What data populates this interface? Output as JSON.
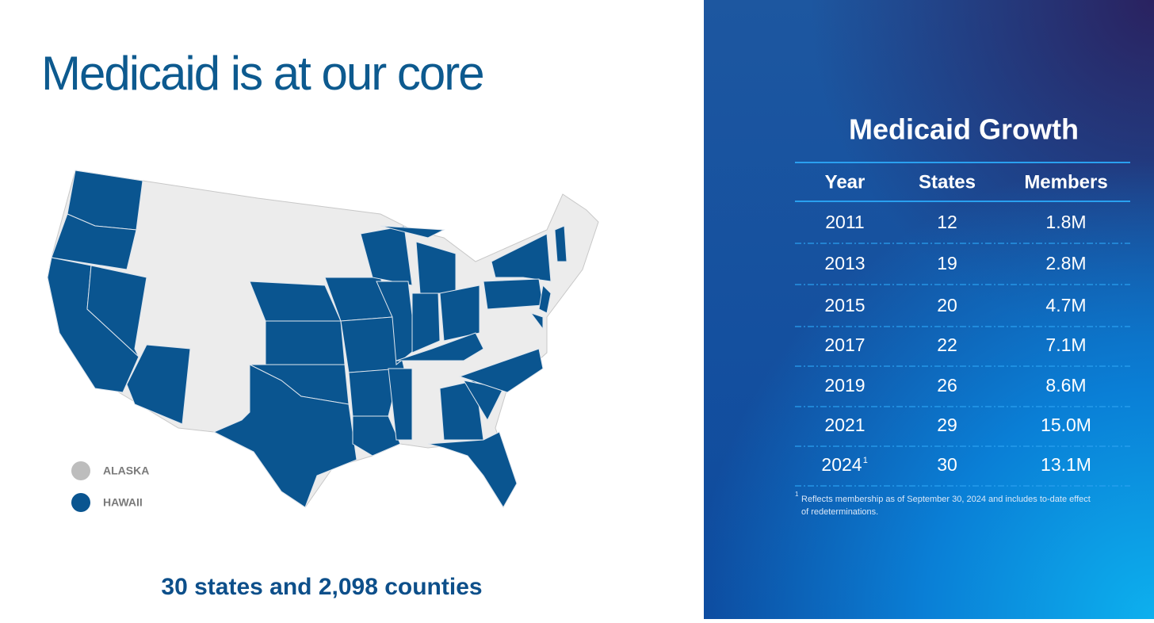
{
  "header": {
    "title": "Medicaid is at our core"
  },
  "map": {
    "legend": [
      {
        "label": "ALASKA"
      },
      {
        "label": "HAWAII"
      }
    ],
    "caption": "30 states and 2,098 counties"
  },
  "table": {
    "title": "Medicaid Growth",
    "columns": [
      "Year",
      "States",
      "Members"
    ],
    "rows": [
      [
        "2011",
        "12",
        "1.8M"
      ],
      [
        "2013",
        "19",
        "2.8M"
      ],
      [
        "2015",
        "20",
        "4.7M"
      ],
      [
        "2017",
        "22",
        "7.1M"
      ],
      [
        "2019",
        "26",
        "8.6M"
      ],
      [
        "2021",
        "29",
        "15.0M"
      ],
      [
        "2024",
        "30",
        "13.1M"
      ]
    ],
    "footnote": {
      "mark": "1",
      "lines": [
        "Reflects membership as of September 30, 2024 and includes to-date effect",
        "of redeterminations."
      ]
    }
  }
}
